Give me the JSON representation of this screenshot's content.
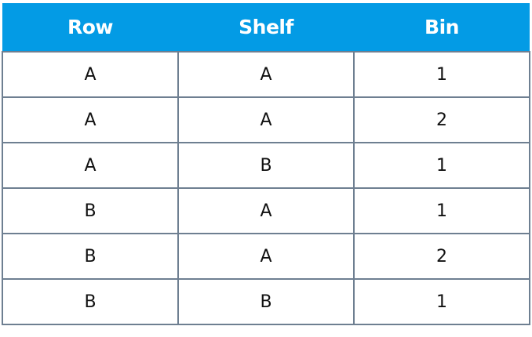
{
  "table": {
    "headers": [
      "Row",
      "Shelf",
      "Bin"
    ],
    "rows": [
      [
        "A",
        "A",
        "1"
      ],
      [
        "A",
        "A",
        "2"
      ],
      [
        "A",
        "B",
        "1"
      ],
      [
        "B",
        "A",
        "1"
      ],
      [
        "B",
        "A",
        "2"
      ],
      [
        "B",
        "B",
        "1"
      ]
    ]
  },
  "colors": {
    "header_bg": "#039be5",
    "border": "#6e7f91"
  }
}
